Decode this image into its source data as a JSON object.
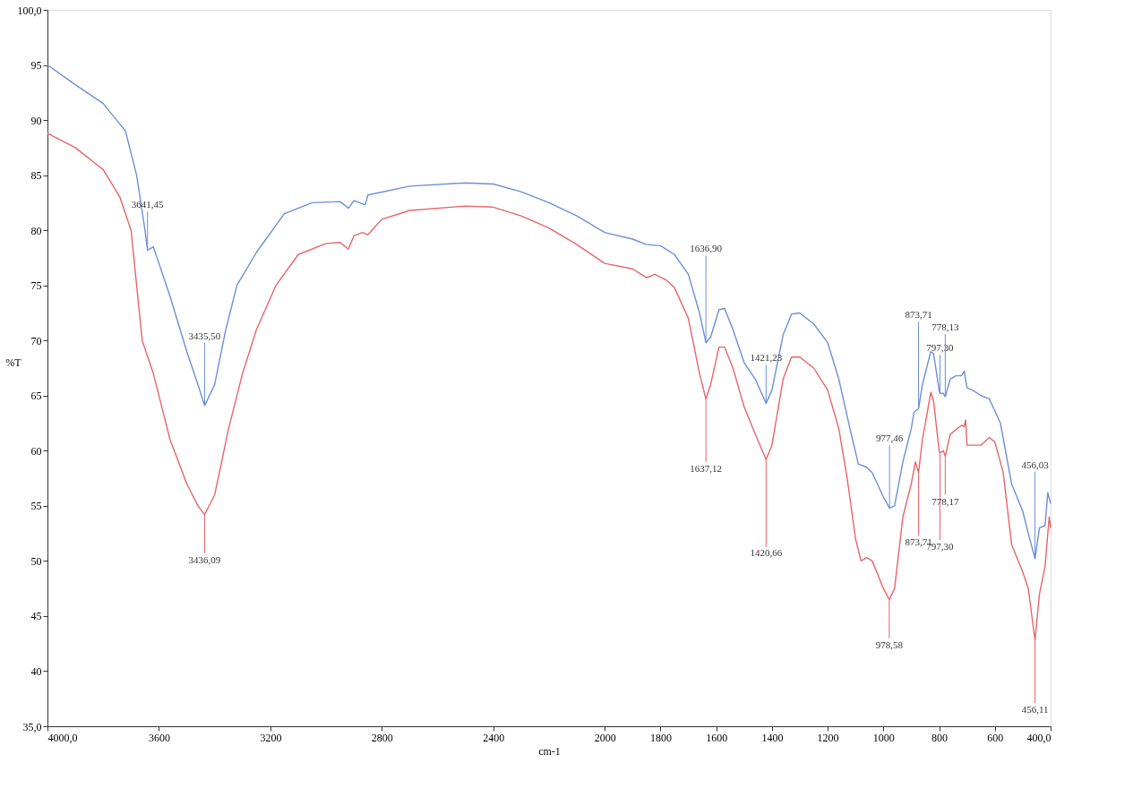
{
  "chart_data": {
    "type": "line",
    "xlabel": "cm-1",
    "ylabel": "%T",
    "xlim": [
      4000,
      400
    ],
    "ylim": [
      35,
      100
    ],
    "xticks": [
      {
        "value": 4000,
        "label": "4000,0"
      },
      3600,
      3200,
      2800,
      2400,
      2000,
      1800,
      1600,
      1400,
      1200,
      1000,
      800,
      600,
      {
        "value": 400,
        "label": "400,0"
      }
    ],
    "yticks": [
      {
        "value": 35,
        "label": "35,0"
      },
      40,
      45,
      50,
      55,
      60,
      65,
      70,
      75,
      80,
      85,
      90,
      95,
      {
        "value": 100,
        "label": "100,0"
      }
    ],
    "grid": false,
    "marker": "none",
    "line_style": "solid",
    "x": [
      4000,
      3900,
      3800,
      3720,
      3680,
      3650,
      3641,
      3620,
      3560,
      3500,
      3460,
      3436,
      3400,
      3360,
      3320,
      3250,
      3150,
      3050,
      2950,
      2920,
      2900,
      2860,
      2850,
      2700,
      2500,
      2400,
      2300,
      2200,
      2100,
      2000,
      1900,
      1850,
      1800,
      1750,
      1700,
      1660,
      1637,
      1620,
      1590,
      1570,
      1540,
      1500,
      1460,
      1421,
      1400,
      1360,
      1330,
      1300,
      1250,
      1200,
      1160,
      1120,
      1090,
      1060,
      1040,
      1000,
      978,
      960,
      930,
      900,
      890,
      874,
      860,
      830,
      820,
      800,
      797,
      785,
      778,
      760,
      740,
      720,
      710,
      700,
      680,
      650,
      620,
      580,
      540,
      500,
      480,
      456,
      440,
      420,
      410,
      400
    ],
    "series": [
      {
        "color": "#6d8fd6",
        "values": [
          95.0,
          93.2,
          91.5,
          89,
          85,
          80,
          78.2,
          78.5,
          74,
          69,
          66,
          64.1,
          66,
          71,
          75,
          78,
          81.5,
          82.5,
          82.6,
          82.0,
          82.7,
          82.3,
          83.2,
          84,
          84.3,
          84.2,
          83.5,
          82.5,
          81.3,
          79.8,
          79.2,
          78.7,
          78.6,
          77.8,
          76,
          72.5,
          69.8,
          70.3,
          72.8,
          72.9,
          71,
          68,
          66.5,
          64.3,
          65.5,
          70.5,
          72.4,
          72.5,
          71.5,
          69.8,
          66.5,
          62,
          58.8,
          58.5,
          58,
          55.8,
          54.8,
          55,
          59,
          62,
          63.5,
          63.8,
          66,
          69,
          68.8,
          65.5,
          65.2,
          65.2,
          64.9,
          66.5,
          66.8,
          66.8,
          67.2,
          65.7,
          65.5,
          65,
          64.7,
          62.5,
          57,
          54.5,
          52.5,
          50.2,
          53,
          53.2,
          56.2,
          55.2
        ]
      },
      {
        "color": "#e8646a",
        "x": [
          4000,
          3900,
          3800,
          3740,
          3700,
          3680,
          3660,
          3620,
          3560,
          3500,
          3460,
          3436,
          3400,
          3350,
          3300,
          3250,
          3180,
          3100,
          3000,
          2950,
          2920,
          2900,
          2870,
          2850,
          2800,
          2700,
          2500,
          2400,
          2300,
          2200,
          2100,
          2000,
          1900,
          1850,
          1820,
          1780,
          1750,
          1700,
          1660,
          1637,
          1620,
          1590,
          1570,
          1540,
          1500,
          1460,
          1421,
          1400,
          1360,
          1330,
          1300,
          1250,
          1200,
          1160,
          1130,
          1100,
          1080,
          1060,
          1040,
          1000,
          979,
          960,
          930,
          900,
          885,
          874,
          860,
          830,
          820,
          800,
          797,
          785,
          778,
          760,
          720,
          710,
          705,
          700,
          680,
          650,
          620,
          600,
          570,
          540,
          500,
          480,
          456,
          440,
          420,
          405,
          400
        ],
        "values": [
          88.8,
          87.5,
          85.5,
          83,
          80,
          75,
          70,
          67,
          61,
          57,
          55,
          54.2,
          56,
          62,
          67,
          71,
          75,
          77.8,
          78.8,
          78.9,
          78.3,
          79.5,
          79.8,
          79.6,
          81,
          81.8,
          82.2,
          82.1,
          81.3,
          80.2,
          78.7,
          77,
          76.5,
          75.7,
          76,
          75.5,
          74.8,
          72,
          67,
          64.7,
          66,
          69.4,
          69.4,
          67.5,
          64,
          61.5,
          59.2,
          60.5,
          66.5,
          68.5,
          68.5,
          67.5,
          65.5,
          62,
          57.5,
          52,
          50,
          50.3,
          50,
          47.5,
          46.5,
          47.5,
          54,
          57,
          59,
          58,
          61,
          65.3,
          64.5,
          60,
          59.8,
          60,
          59.5,
          61.5,
          62.3,
          62.2,
          62.8,
          60.5,
          60.5,
          60.5,
          61.2,
          60.8,
          58,
          51.5,
          49,
          47.5,
          42.8,
          47,
          49.5,
          54,
          53
        ]
      }
    ],
    "annotations": [
      {
        "text": "3641,45",
        "x": 3641,
        "y": 78.2
      },
      {
        "text": "3435,50",
        "x": 3436,
        "y": 64.1
      },
      {
        "text": "3436,09",
        "x": 3436,
        "y": 54.2
      },
      {
        "text": "1636,90",
        "x": 1637,
        "y": 69.8
      },
      {
        "text": "1637,12",
        "x": 1637,
        "y": 64.7
      },
      {
        "text": "1421,23",
        "x": 1421,
        "y": 64.3
      },
      {
        "text": "1420,66",
        "x": 1421,
        "y": 59.2
      },
      {
        "text": "977,46",
        "x": 978,
        "y": 54.8
      },
      {
        "text": "978,58",
        "x": 979,
        "y": 46.5
      },
      {
        "text": "873,71",
        "x": 874,
        "y": 63.8
      },
      {
        "text": "873,71",
        "x": 874,
        "y": 58
      },
      {
        "text": "797,30",
        "x": 797,
        "y": 65.2
      },
      {
        "text": "797,30",
        "x": 797,
        "y": 59.8
      },
      {
        "text": "778,13",
        "x": 778,
        "y": 64.9
      },
      {
        "text": "778,17",
        "x": 778,
        "y": 59.5
      },
      {
        "text": "456,03",
        "x": 456,
        "y": 50.2
      },
      {
        "text": "456,11",
        "x": 456,
        "y": 42.8
      }
    ]
  }
}
